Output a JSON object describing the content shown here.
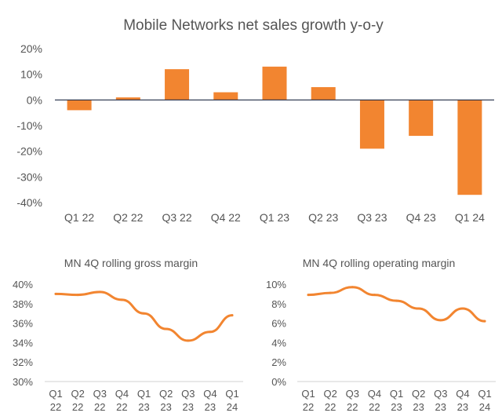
{
  "colors": {
    "bar": "#F28530",
    "line": "#F28530",
    "axis": "#1F2A44",
    "text": "#555555",
    "background": "#FFFFFF"
  },
  "chart_data": [
    {
      "type": "bar",
      "title": "Mobile Networks net sales growth y-o-y",
      "xlabel": "",
      "ylabel": "",
      "categories": [
        "Q1 22",
        "Q2 22",
        "Q3 22",
        "Q4 22",
        "Q1 23",
        "Q2 23",
        "Q3 23",
        "Q4 23",
        "Q1 24"
      ],
      "values": [
        -4,
        1,
        12,
        3,
        13,
        5,
        -19,
        -14,
        -37
      ],
      "ylim": [
        -40,
        20
      ],
      "yticks": [
        "20%",
        "10%",
        "0%",
        "-10%",
        "-20%",
        "-30%",
        "-40%"
      ],
      "grid": false,
      "legend": "none"
    },
    {
      "type": "line",
      "title": "MN 4Q rolling gross margin",
      "xlabel": "",
      "ylabel": "",
      "categories": [
        [
          "Q1",
          "22"
        ],
        [
          "Q2",
          "22"
        ],
        [
          "Q3",
          "22"
        ],
        [
          "Q4",
          "22"
        ],
        [
          "Q1",
          "23"
        ],
        [
          "Q2",
          "23"
        ],
        [
          "Q3",
          "23"
        ],
        [
          "Q4",
          "23"
        ],
        [
          "Q1",
          "24"
        ]
      ],
      "values": [
        39.0,
        38.9,
        39.2,
        38.4,
        37.0,
        35.4,
        34.2,
        35.1,
        36.8
      ],
      "ylim": [
        30,
        40
      ],
      "yticks": [
        "40%",
        "38%",
        "36%",
        "34%",
        "32%",
        "30%"
      ],
      "grid": false,
      "legend": "none"
    },
    {
      "type": "line",
      "title": "MN 4Q rolling operating margin",
      "xlabel": "",
      "ylabel": "",
      "categories": [
        [
          "Q1",
          "22"
        ],
        [
          "Q2",
          "22"
        ],
        [
          "Q3",
          "22"
        ],
        [
          "Q4",
          "22"
        ],
        [
          "Q1",
          "23"
        ],
        [
          "Q2",
          "23"
        ],
        [
          "Q3",
          "23"
        ],
        [
          "Q4",
          "23"
        ],
        [
          "Q1",
          "24"
        ]
      ],
      "values": [
        8.9,
        9.1,
        9.7,
        8.9,
        8.3,
        7.5,
        6.3,
        7.5,
        6.2
      ],
      "ylim": [
        0,
        10
      ],
      "yticks": [
        "10%",
        "8%",
        "6%",
        "4%",
        "2%",
        "0%"
      ],
      "grid": false,
      "legend": "none"
    }
  ]
}
